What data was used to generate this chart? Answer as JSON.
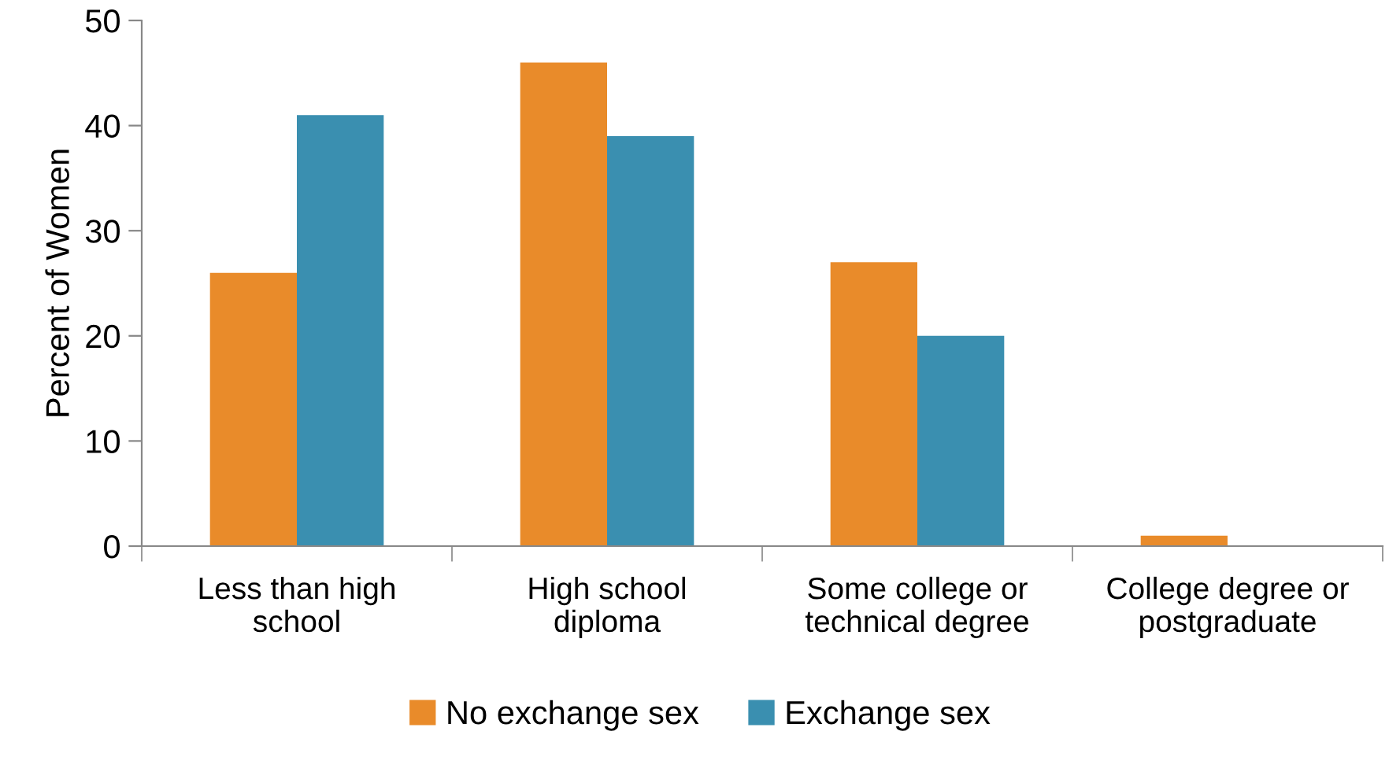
{
  "chart_data": {
    "type": "bar",
    "ylabel": "Percent of Women",
    "categories": [
      "Less than high\nschool",
      "High school\ndiploma",
      "Some college or\ntechnical degree",
      "College degree or\npostgraduate"
    ],
    "series": [
      {
        "name": "No exchange sex",
        "color": "#e98b2a",
        "values": [
          26,
          46,
          27,
          1
        ]
      },
      {
        "name": "Exchange sex",
        "color": "#3a8fb0",
        "values": [
          41,
          39,
          20,
          0
        ]
      }
    ],
    "ylim": [
      0,
      50
    ],
    "yticks": [
      0,
      10,
      20,
      30,
      40,
      50
    ],
    "grid": false,
    "legend": "bottom"
  }
}
